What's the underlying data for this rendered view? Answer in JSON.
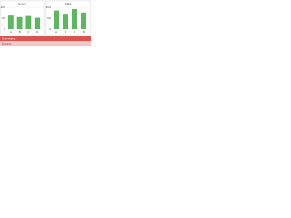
{
  "chart_data": [
    {
      "type": "bar",
      "title": "Score",
      "categories": [
        "A",
        "B",
        "C",
        "D"
      ],
      "values": [
        62,
        55,
        60,
        52
      ],
      "color": "#5cb85c",
      "ylim": [
        0,
        100
      ],
      "yticks": [
        0,
        50,
        100
      ],
      "grid": true
    },
    {
      "type": "bar",
      "title": "Rate",
      "categories": [
        "A",
        "B",
        "C",
        "D"
      ],
      "values": [
        85,
        70,
        92,
        76
      ],
      "color": "#5cb85c",
      "ylim": [
        0,
        100
      ],
      "yticks": [
        0,
        50,
        100
      ],
      "grid": true
    }
  ],
  "footer": {
    "title": "Summary",
    "note": "Details"
  }
}
